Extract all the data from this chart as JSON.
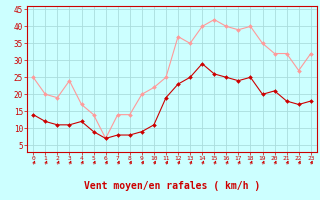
{
  "hours": [
    0,
    1,
    2,
    3,
    4,
    5,
    6,
    7,
    8,
    9,
    10,
    11,
    12,
    13,
    14,
    15,
    16,
    17,
    18,
    19,
    20,
    21,
    22,
    23
  ],
  "vent_moyen": [
    14,
    12,
    11,
    11,
    12,
    9,
    7,
    8,
    8,
    9,
    11,
    19,
    23,
    25,
    29,
    26,
    25,
    24,
    25,
    20,
    21,
    18,
    17,
    18
  ],
  "vent_rafales": [
    25,
    20,
    19,
    24,
    17,
    14,
    7,
    14,
    14,
    20,
    22,
    25,
    37,
    35,
    40,
    42,
    40,
    39,
    40,
    35,
    32,
    32,
    27,
    32
  ],
  "color_moyen": "#cc0000",
  "color_rafales": "#ff9999",
  "bg_color": "#ccffff",
  "grid_color": "#aadddd",
  "xlabel": "Vent moyen/en rafales ( km/h )",
  "xlabel_color": "#cc0000",
  "tick_color": "#cc0000",
  "ylim": [
    3,
    46
  ],
  "yticks": [
    5,
    10,
    15,
    20,
    25,
    30,
    35,
    40,
    45
  ],
  "xlim": [
    -0.5,
    23.5
  ]
}
